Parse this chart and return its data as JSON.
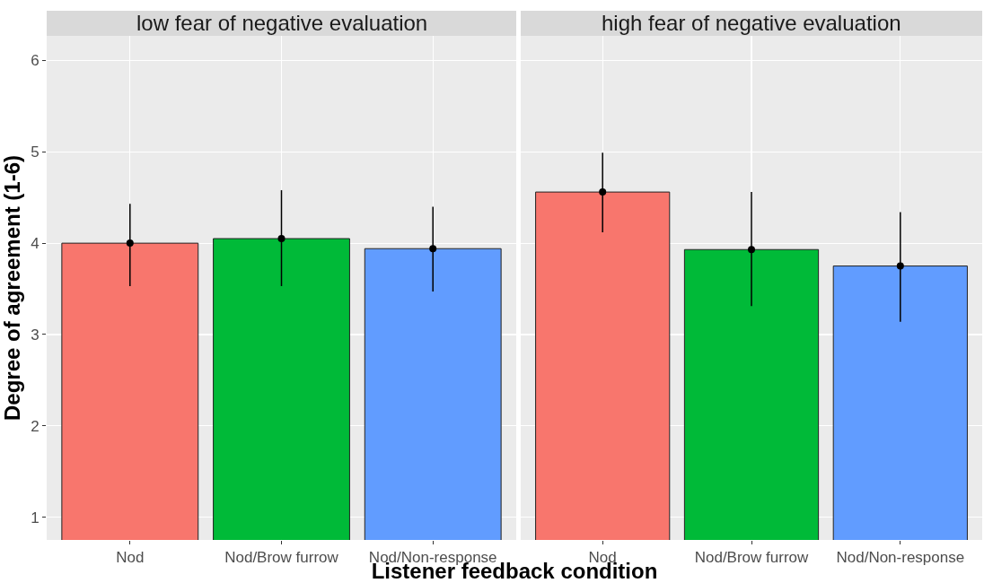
{
  "chart_data": [
    {
      "type": "bar",
      "title": "low fear of negative evaluation",
      "ylabel": "Degree of agreement (1-6)",
      "xlabel": "Listener feedback condition",
      "categories": [
        "Nod",
        "Nod/Brow furrow",
        "Nod/Non-response"
      ],
      "series": [
        {
          "type": "bar",
          "colors": [
            "#f8766d",
            "#00ba38",
            "#619cff"
          ],
          "values": [
            4.0,
            4.05,
            3.94
          ]
        },
        {
          "type": "scatter",
          "x": [
            "Nod",
            "Nod/Brow furrow",
            "Nod/Non-response"
          ],
          "color": "#000000",
          "values": [
            4.0,
            4.05,
            3.94
          ],
          "errors": [
            [
              3.53,
              4.43
            ],
            [
              3.53,
              4.58
            ],
            [
              3.47,
              4.4
            ]
          ]
        }
      ],
      "marker": "circle",
      "ylim": [
        0.75,
        6.27
      ],
      "yticks": [
        1,
        2,
        3,
        4,
        5,
        6
      ],
      "grid": true
    },
    {
      "type": "bar",
      "title": "high fear of negative evaluation",
      "categories": [
        "Nod",
        "Nod/Brow furrow",
        "Nod/Non-response"
      ],
      "series": [
        {
          "type": "bar",
          "colors": [
            "#f8766d",
            "#00ba38",
            "#619cff"
          ],
          "values": [
            4.56,
            3.93,
            3.75
          ]
        },
        {
          "type": "scatter",
          "x": [
            "Nod",
            "Nod/Brow furrow",
            "Nod/Non-response"
          ],
          "color": "#000000",
          "values": [
            4.56,
            3.93,
            3.75
          ],
          "errors": [
            [
              4.12,
              4.99
            ],
            [
              3.31,
              4.56
            ],
            [
              3.14,
              4.34
            ]
          ]
        }
      ],
      "marker": "circle",
      "ylim": [
        0.75,
        6.27
      ],
      "yticks": [
        1,
        2,
        3,
        4,
        5,
        6
      ],
      "grid": true,
      "tick_labels": "x"
    }
  ]
}
